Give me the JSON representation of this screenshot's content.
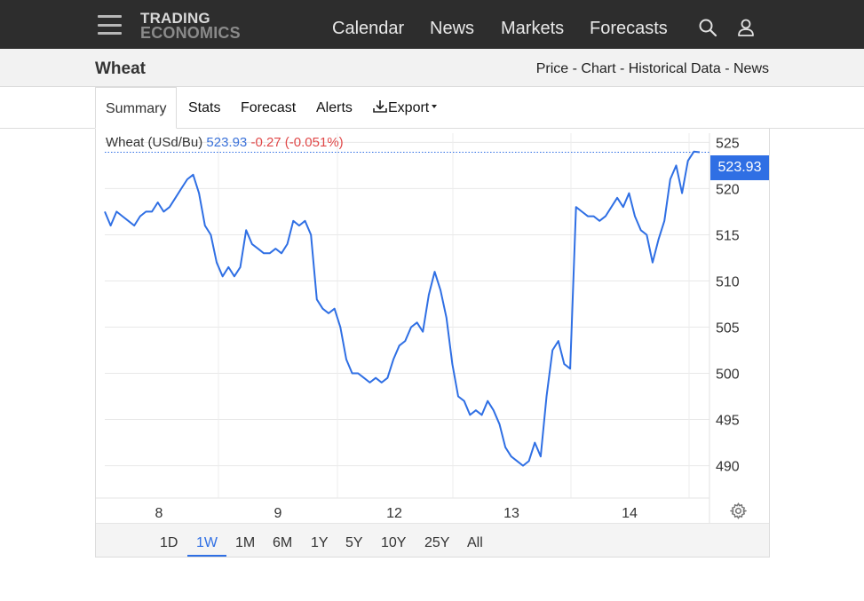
{
  "header": {
    "logo_line1": "TRADING",
    "logo_line2": "ECONOMICS",
    "nav": [
      "Calendar",
      "News",
      "Markets",
      "Forecasts"
    ],
    "menu_icon": "hamburger-icon",
    "search_icon": "search-icon",
    "user_icon": "user-icon"
  },
  "subbar": {
    "title": "Wheat",
    "links": [
      "Price",
      "Chart",
      "Historical Data",
      "News"
    ],
    "separator": " - "
  },
  "tabs": {
    "summary": "Summary",
    "stats": "Stats",
    "forecast": "Forecast",
    "alerts": "Alerts",
    "export": "Export",
    "export_icon": "download-icon",
    "dropdown_icon": "caret-down-icon"
  },
  "legend": {
    "name": "Wheat (USd/Bu)",
    "price": "523.93",
    "change": "-0.27 (-0.051%)"
  },
  "price_tag": "523.93",
  "settings_icon": "gear-icon",
  "ranges": [
    "1D",
    "1W",
    "1M",
    "6M",
    "1Y",
    "5Y",
    "10Y",
    "25Y",
    "All"
  ],
  "active_range": "1W",
  "colors": {
    "line": "#2f6fe4",
    "accent": "#2f6fe4",
    "negative": "#e04848",
    "topbar": "#2d2d2d"
  },
  "chart_data": {
    "type": "line",
    "title": "",
    "xlabel": "",
    "ylabel": "",
    "ylim": [
      486.5,
      526
    ],
    "x_tick_labels": [
      "8",
      "9",
      "12",
      "13",
      "14"
    ],
    "y_ticks": [
      525,
      520,
      515,
      510,
      505,
      500,
      495,
      490
    ],
    "grid": true,
    "current_value": 523.93,
    "series": [
      {
        "name": "",
        "values": [
          517.5,
          516.0,
          517.5,
          517.0,
          516.5,
          516.0,
          517.0,
          517.5,
          517.5,
          518.5,
          517.5,
          518.0,
          519.0,
          520.0,
          521.0,
          521.5,
          519.5,
          516.0,
          515.0,
          512.0,
          510.5,
          511.5,
          510.5,
          511.5,
          515.5,
          514.0,
          513.5,
          513.0,
          513.0,
          513.5,
          513.0,
          514.0,
          516.5,
          516.0,
          516.5,
          515.0,
          508.0,
          507.0,
          506.5,
          507.0,
          505.0,
          501.5,
          500.0,
          500.0,
          499.5,
          499.0,
          499.5,
          499.0,
          499.5,
          501.5,
          503.0,
          503.5,
          505.0,
          505.5,
          504.5,
          508.5,
          511.0,
          509.0,
          506.0,
          501.0,
          497.5,
          497.0,
          495.5,
          496.0,
          495.5,
          497.0,
          496.0,
          494.5,
          492.0,
          491.0,
          490.5,
          490.0,
          490.5,
          492.5,
          491.0,
          497.5,
          502.5,
          503.5,
          501.0,
          500.5,
          518.0,
          517.5,
          517.0,
          517.0,
          516.5,
          517.0,
          518.0,
          519.0,
          518.0,
          519.5,
          517.0,
          515.5,
          515.0,
          512.0,
          514.5,
          516.5,
          521.0,
          522.5,
          519.5,
          523.0,
          524.0,
          523.93
        ]
      }
    ]
  }
}
